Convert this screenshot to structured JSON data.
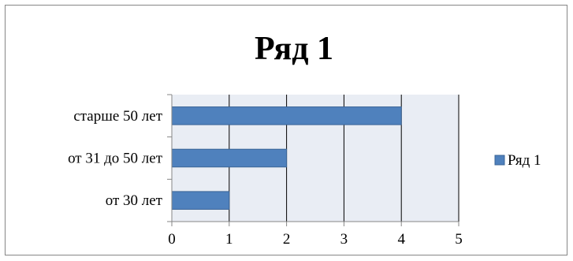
{
  "chart_data": {
    "type": "bar",
    "orientation": "horizontal",
    "title": "Ряд 1",
    "categories": [
      "от 30 лет",
      "от 31 до 50 лет",
      "старше 50 лет"
    ],
    "series": [
      {
        "name": "Ряд 1",
        "values": [
          1,
          2,
          4
        ],
        "color": "#4F81BD"
      }
    ],
    "xlim": [
      0,
      5
    ],
    "xticks": [
      "0",
      "1",
      "2",
      "3",
      "4",
      "5"
    ],
    "grid": true,
    "legend_position": "right",
    "plot_background": "#E9EDF4"
  }
}
